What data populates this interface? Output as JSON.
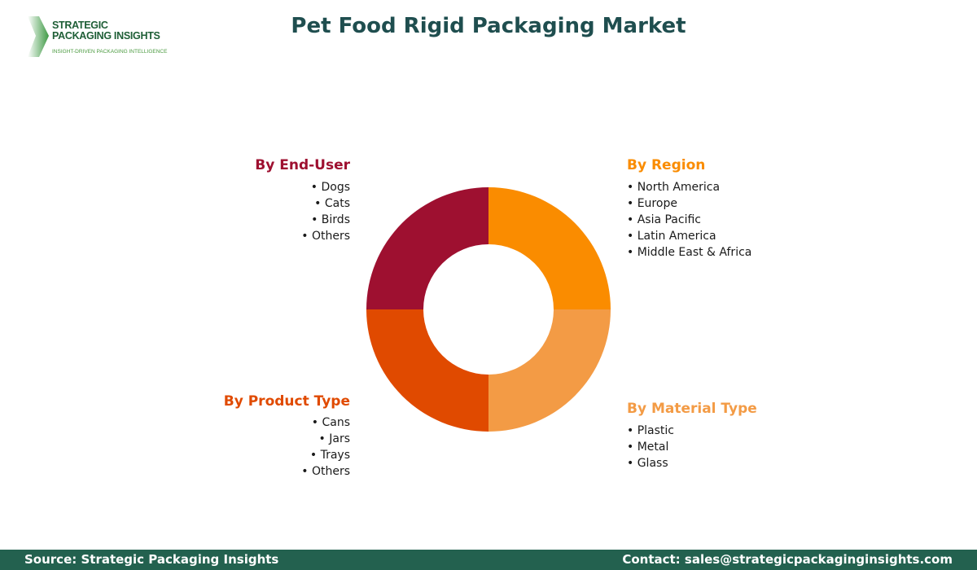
{
  "logo": {
    "line1": "STRATEGIC",
    "line2": "PACKAGING INSIGHTS",
    "tagline": "INSIGHT-DRIVEN PACKAGING INTELLIGENCE"
  },
  "title": "Pet Food Rigid Packaging Market",
  "segments": {
    "end_user": {
      "title": "By End-User",
      "items": [
        "Dogs",
        "Cats",
        "Birds",
        "Others"
      ],
      "color": "#9e1030"
    },
    "region": {
      "title": "By Region",
      "items": [
        "North America",
        "Europe",
        "Asia Pacific",
        "Latin America",
        "Middle East & Africa"
      ],
      "color": "#fa8c00"
    },
    "product_type": {
      "title": "By Product Type",
      "items": [
        "Cans",
        "Jars",
        "Trays",
        "Others"
      ],
      "color": "#e04a00"
    },
    "material_type": {
      "title": "By Material Type",
      "items": [
        "Plastic",
        "Metal",
        "Glass"
      ],
      "color": "#f39b45"
    }
  },
  "chart_data": {
    "type": "pie",
    "categories": [
      "By Region",
      "By Material Type",
      "By Product Type",
      "By End-User"
    ],
    "values": [
      25,
      25,
      25,
      25
    ],
    "colors": [
      "#fa8c00",
      "#f39b45",
      "#e04a00",
      "#9e1030"
    ],
    "donut": true
  },
  "footer": {
    "source": "Source: Strategic Packaging Insights",
    "contact": "Contact: sales@strategicpackaginginsights.com"
  }
}
